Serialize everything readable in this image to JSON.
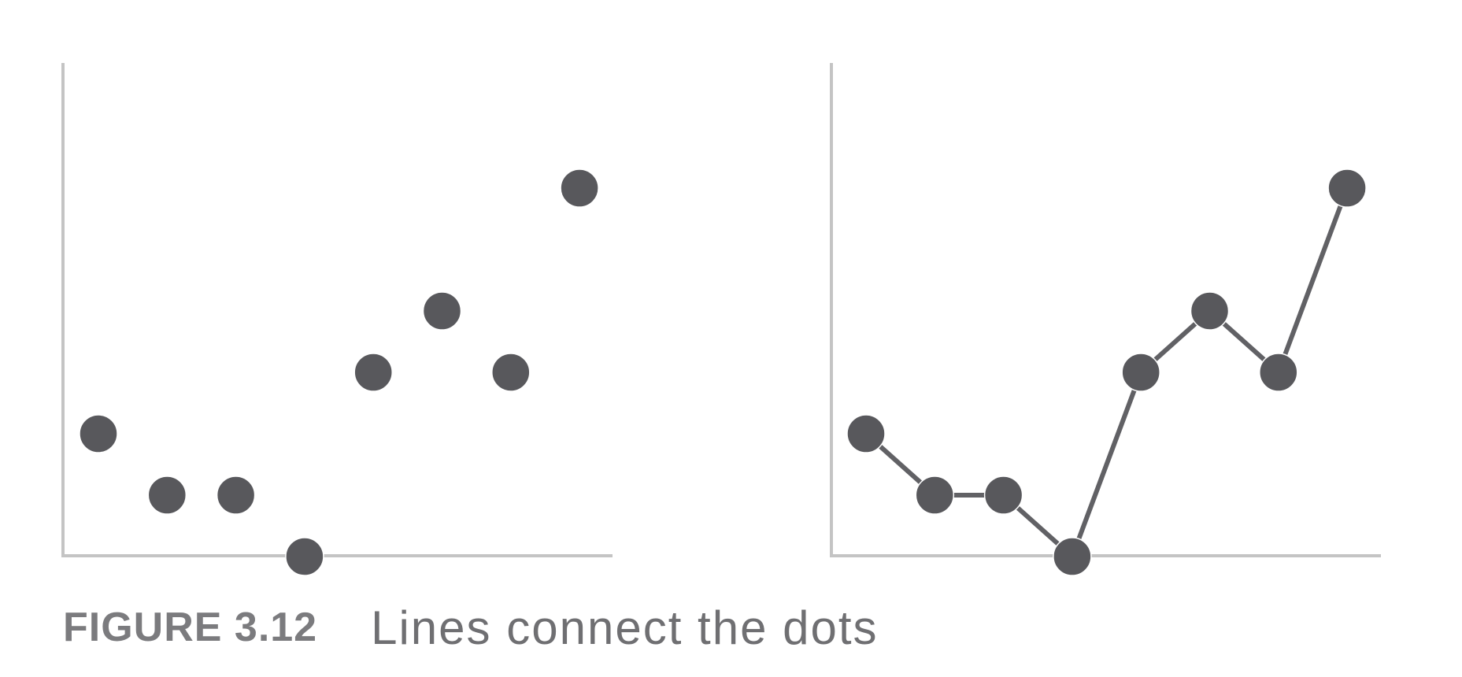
{
  "chart_data": [
    {
      "type": "scatter",
      "title": "",
      "xlabel": "",
      "ylabel": "",
      "grid": false,
      "x": [
        1,
        2,
        3,
        4,
        5,
        6,
        7,
        8
      ],
      "y": [
        3,
        2,
        2,
        1,
        4,
        5,
        4,
        7
      ],
      "xlim": [
        0.5,
        8.5
      ],
      "ylim": [
        0,
        8
      ]
    },
    {
      "type": "line",
      "title": "",
      "xlabel": "",
      "ylabel": "",
      "grid": false,
      "markers": true,
      "x": [
        1,
        2,
        3,
        4,
        5,
        6,
        7,
        8
      ],
      "y": [
        3,
        2,
        2,
        1,
        4,
        5,
        4,
        7
      ],
      "xlim": [
        0.5,
        8.5
      ],
      "ylim": [
        0,
        8
      ]
    }
  ],
  "caption": {
    "figure_number": "FIGURE 3.12",
    "text": "Lines connect the dots"
  },
  "colors": {
    "axis": "#c4c4c4",
    "marker": "#58585c",
    "line": "#616165",
    "caption_number": "#7b7b7e",
    "caption_text": "#6f6f72"
  }
}
